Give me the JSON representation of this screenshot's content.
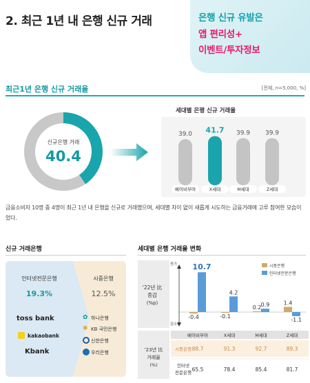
{
  "header": {
    "title": "2. 최근 1년 내 은행 신규 거래",
    "callout_line1": "은행 신규 유발은",
    "callout_line2": "앱 편리성+",
    "callout_line3": "이벤트/투자정보",
    "colors": {
      "teal": "#139aa2",
      "pink": "#e8186d"
    }
  },
  "section1": {
    "title": "최근1년 은행 신규 거래율",
    "note": "[전체, n=5,000, %]",
    "donut_label": "신규은행 거래",
    "donut_value": "40.4",
    "generation_title": "세대별 은행 신규 거래율",
    "paragraph": "금융소비자 10명 중 4명이 최근 1년 내 은행을 신규로 거래했으며, 세대별 차이 없이 새롭게 시도하는 금융거래에 고루 참여한 모습이었다."
  },
  "section2": {
    "left_title": "신규 거래은행",
    "right_title": "세대별 은행 거래율 변화",
    "internet_bank_head": "인터넷전문은행",
    "internet_bank_pct": "19.3%",
    "commercial_bank_head": "시중은행",
    "commercial_bank_pct": "12.5%",
    "internet_banks": [
      "toss bank",
      "kakaobank",
      "Kbank"
    ],
    "commercial_banks": [
      "하나은행",
      "KB 국민은행",
      "신한은행",
      "우리은행"
    ]
  },
  "chart_data": [
    {
      "type": "pie",
      "categories": [
        "신규은행 거래",
        ""
      ],
      "values": [
        40.4,
        59.6
      ],
      "colors": [
        "#1aa5ac",
        "#c8c8c8"
      ]
    },
    {
      "type": "bar",
      "title": "세대별 은행 신규 거래율",
      "categories": [
        "베이비부머",
        "X세대",
        "M세대",
        "Z세대"
      ],
      "values": [
        39.0,
        41.7,
        39.9,
        39.9
      ],
      "value_labels": [
        "39.0",
        "41.7",
        "39.9",
        "39.9"
      ],
      "highlight_index": 1,
      "colors": {
        "default": "#c4c4c4",
        "highlight": "#1aa5ac"
      }
    },
    {
      "type": "bar",
      "categories": [
        "베이비부머",
        "X세대",
        "M세대",
        "Z세대"
      ],
      "series": [
        {
          "name": "시중은행",
          "values": [
            -0.4,
            -0.1,
            0.2,
            1.4
          ],
          "labels": [
            "-0.4",
            "-0.1",
            "0.2",
            "1.4"
          ],
          "color": "#d3a86c"
        },
        {
          "name": "인터넷전문은행",
          "values": [
            10.7,
            4.2,
            0.9,
            -1.1
          ],
          "labels": [
            "10.7",
            "4.2",
            "0.9",
            "-1.1"
          ],
          "color": "#5a9bd8"
        }
      ],
      "ylabel": "'22년 比 증감 (%p)",
      "axis_top_label": "증가",
      "axis_bottom_label": "감소",
      "legend": "top-right",
      "table": {
        "title": "'23년 比 거래율 (%)",
        "rows": [
          {
            "name": "시중은행",
            "values": [
              "88.7",
              "91.3",
              "92.7",
              "89.3"
            ]
          },
          {
            "name": "인터넷 전문은행",
            "values": [
              "65.5",
              "78.4",
              "85.4",
              "81.7"
            ]
          }
        ]
      }
    }
  ]
}
